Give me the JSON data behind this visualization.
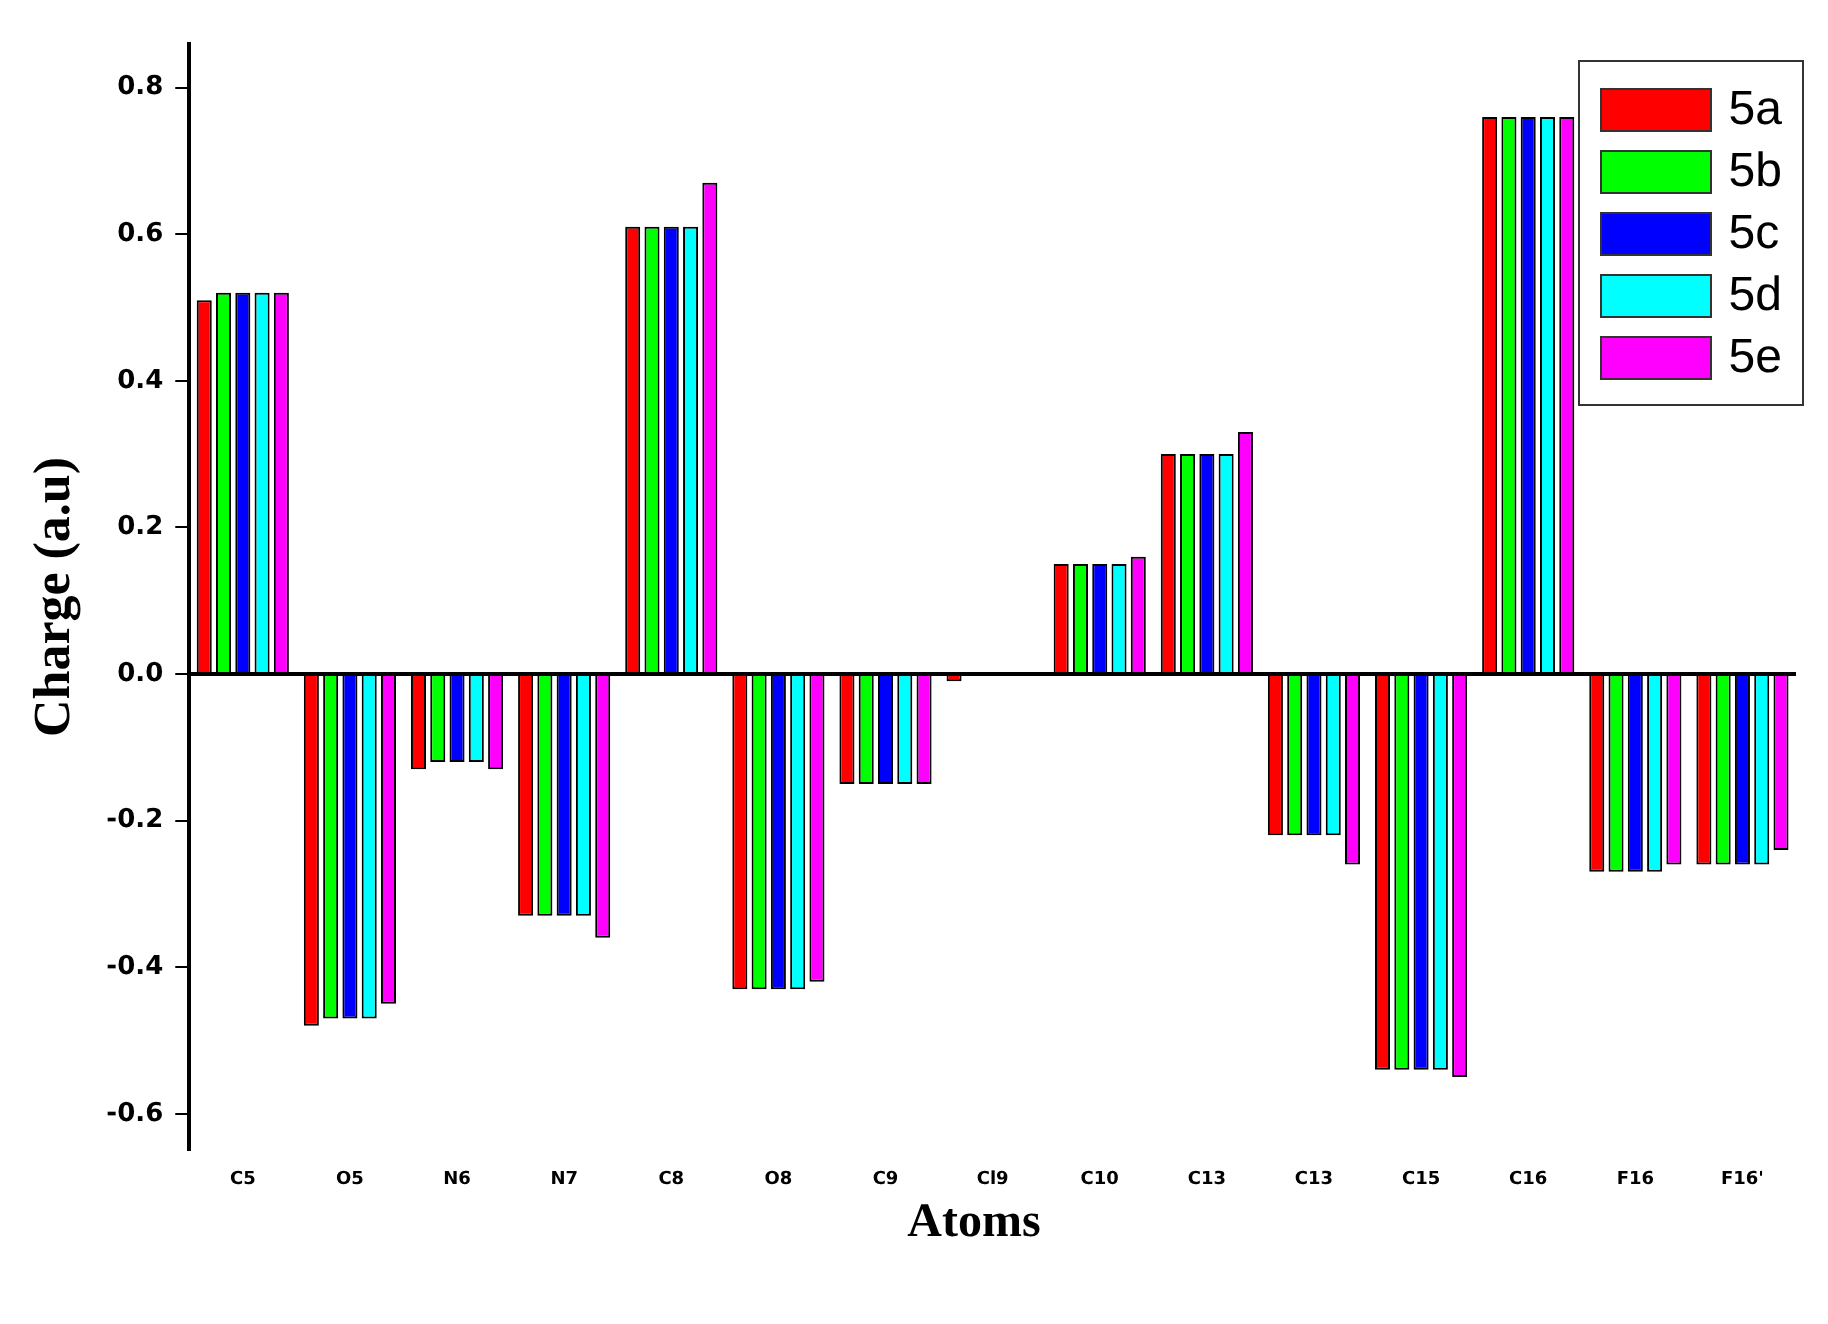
{
  "chart_data": {
    "type": "bar",
    "xlabel": "Atoms",
    "ylabel": "Charge (a.u)",
    "categories": [
      "C5",
      "O5",
      "N6",
      "N7",
      "C8",
      "O8",
      "C9",
      "Cl9",
      "C10",
      "C13",
      "C13",
      "C15",
      "C16",
      "F16",
      "F16'"
    ],
    "series": [
      {
        "name": "5a",
        "color": "#ff0000",
        "values": [
          0.51,
          -0.48,
          -0.13,
          -0.33,
          0.61,
          -0.43,
          -0.15,
          -0.01,
          0.15,
          0.3,
          -0.22,
          -0.54,
          0.76,
          -0.27,
          -0.26
        ]
      },
      {
        "name": "5b",
        "color": "#00ff00",
        "values": [
          0.52,
          -0.47,
          -0.12,
          -0.33,
          0.61,
          -0.43,
          -0.15,
          null,
          0.15,
          0.3,
          -0.22,
          -0.54,
          0.76,
          -0.27,
          -0.26
        ]
      },
      {
        "name": "5c",
        "color": "#0000ff",
        "values": [
          0.52,
          -0.47,
          -0.12,
          -0.33,
          0.61,
          -0.43,
          -0.15,
          null,
          0.15,
          0.3,
          -0.22,
          -0.54,
          0.76,
          -0.27,
          -0.26
        ]
      },
      {
        "name": "5d",
        "color": "#00ffff",
        "values": [
          0.52,
          -0.47,
          -0.12,
          -0.33,
          0.61,
          -0.43,
          -0.15,
          null,
          0.15,
          0.3,
          -0.22,
          -0.54,
          0.76,
          -0.27,
          -0.26
        ]
      },
      {
        "name": "5e",
        "color": "#ff00ff",
        "values": [
          0.52,
          -0.45,
          -0.13,
          -0.36,
          0.67,
          -0.42,
          -0.15,
          null,
          0.16,
          0.33,
          -0.26,
          -0.55,
          0.76,
          -0.26,
          -0.24
        ]
      }
    ],
    "ylim": [
      -0.65,
      0.86
    ],
    "yticks": [
      {
        "value": -0.6,
        "label": "-0.6"
      },
      {
        "value": -0.4,
        "label": "-0.4"
      },
      {
        "value": -0.2,
        "label": "-0.2"
      },
      {
        "value": 0,
        "label": "0.0"
      },
      {
        "value": 0.2,
        "label": "0.2"
      },
      {
        "value": 0.4,
        "label": "0.4"
      },
      {
        "value": 0.6,
        "label": "0.6"
      },
      {
        "value": 0.8,
        "label": "0.8"
      }
    ],
    "legend": "top right"
  }
}
